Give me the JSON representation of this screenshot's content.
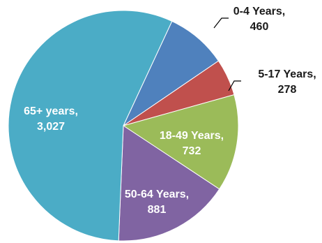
{
  "chart_data": {
    "type": "pie",
    "title": "",
    "start_angle_deg": -65,
    "direction": "clockwise",
    "slices": [
      {
        "label": "0-4 Years,",
        "value_text": "460",
        "value": 460,
        "color": "#4f81bd",
        "label_placement": "outside"
      },
      {
        "label": "5-17 Years,",
        "value_text": "278",
        "value": 278,
        "color": "#c0504d",
        "label_placement": "outside"
      },
      {
        "label": "18-49 Years,",
        "value_text": "732",
        "value": 732,
        "color": "#9bbb59",
        "label_placement": "inside"
      },
      {
        "label": "50-64 Years,",
        "value_text": "881",
        "value": 881,
        "color": "#8064a2",
        "label_placement": "inside"
      },
      {
        "label": "65+ years,",
        "value_text": "3,027",
        "value": 3027,
        "color": "#4bacc6",
        "label_placement": "inside"
      }
    ]
  }
}
